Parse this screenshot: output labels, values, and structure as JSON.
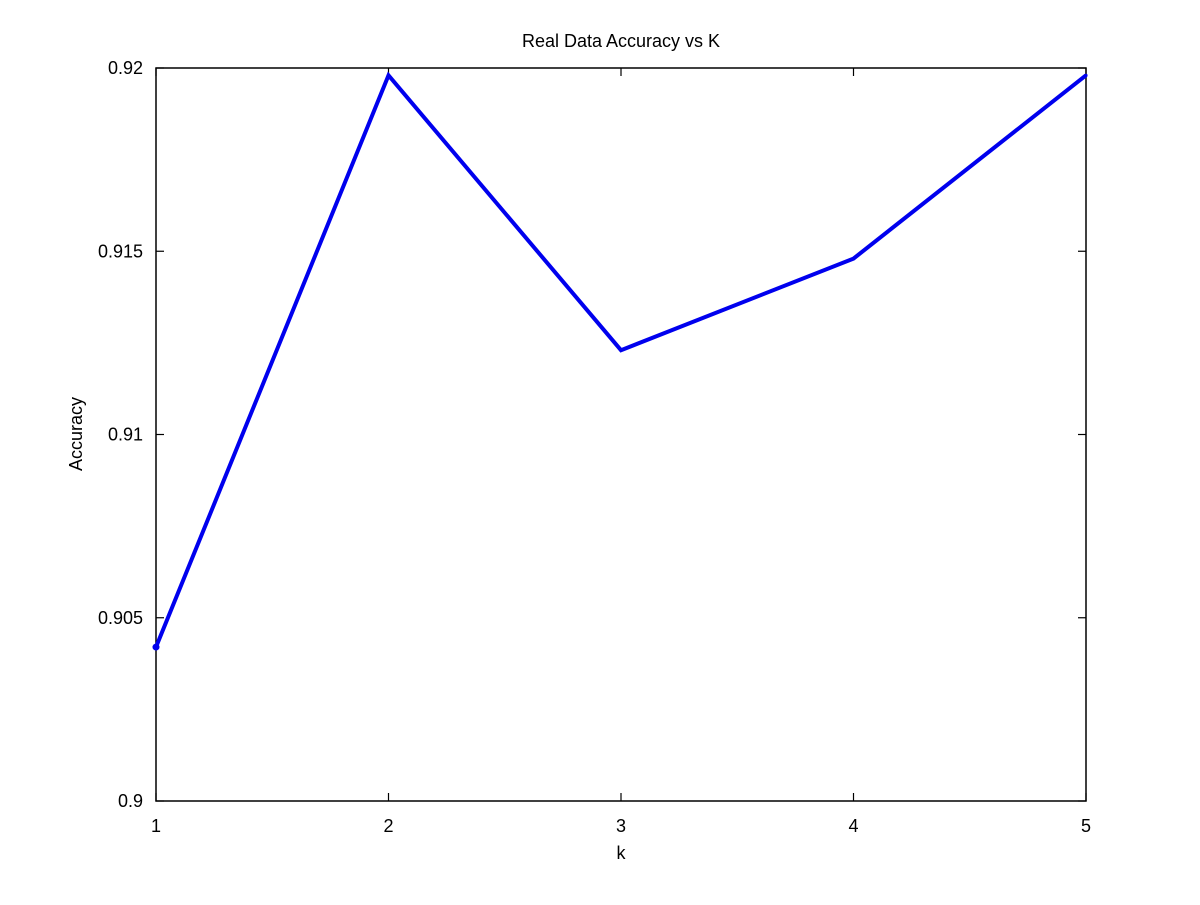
{
  "chart_data": {
    "type": "line",
    "title": "Real Data Accuracy vs K",
    "xlabel": "k",
    "ylabel": "Accuracy",
    "x": [
      1,
      2,
      3,
      4,
      5
    ],
    "series": [
      {
        "values": [
          0.9042,
          0.9198,
          0.9123,
          0.9148,
          0.9198
        ],
        "color": "#0000ee"
      }
    ],
    "xlim": [
      1,
      5
    ],
    "ylim": [
      0.9,
      0.92
    ],
    "xticks": [
      1,
      2,
      3,
      4,
      5
    ],
    "xtick_labels": [
      "1",
      "2",
      "3",
      "4",
      "5"
    ],
    "yticks": [
      0.9,
      0.905,
      0.91,
      0.915,
      0.92
    ],
    "ytick_labels": [
      "0.9",
      "0.905",
      "0.91",
      "0.915",
      "0.92"
    ],
    "grid": false,
    "legend": "none"
  }
}
